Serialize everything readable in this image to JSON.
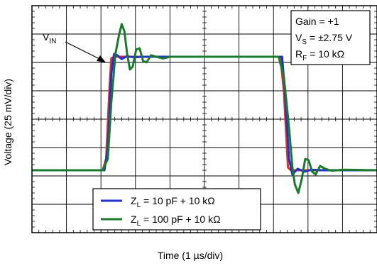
{
  "chart_data": {
    "type": "line",
    "xlabel": "Time (1 µs/div)",
    "ylabel": "Voltage (25 mV/div)",
    "x_divisions": 10,
    "y_divisions": 8,
    "xlim": [
      0,
      10
    ],
    "ylim": [
      0,
      8
    ],
    "grid": true,
    "annotation_box": {
      "gain": "Gain = +1",
      "vs_prefix": "V",
      "vs_sub": "S",
      "vs_value": " = ±2.75 V",
      "rf_prefix": "R",
      "rf_sub": "F",
      "rf_value": " = 10 kΩ"
    },
    "vin_label": {
      "prefix": "V",
      "sub": "IN"
    },
    "legend": {
      "placement": "bottom-center",
      "entries": [
        {
          "prefix": "Z",
          "sub": "L",
          "text": " = 10 pF + 10 kΩ",
          "color": "#1f2fd0"
        },
        {
          "prefix": "Z",
          "sub": "L",
          "text": " = 100 pF + 10 kΩ",
          "color": "#1a7a2c"
        }
      ]
    },
    "series": [
      {
        "id": "vin",
        "color": "#e0302a",
        "points": [
          [
            0,
            2.2
          ],
          [
            2.05,
            2.2
          ],
          [
            2.15,
            2.6
          ],
          [
            2.25,
            5.2
          ],
          [
            2.3,
            6.15
          ],
          [
            2.4,
            6.2
          ],
          [
            7.2,
            6.2
          ],
          [
            7.3,
            5.0
          ],
          [
            7.42,
            2.3
          ],
          [
            7.5,
            2.2
          ],
          [
            10,
            2.2
          ]
        ]
      },
      {
        "id": "blue",
        "color": "#1f2fd0",
        "points": [
          [
            0,
            2.2
          ],
          [
            2.1,
            2.2
          ],
          [
            2.2,
            3.0
          ],
          [
            2.3,
            5.6
          ],
          [
            2.38,
            6.3
          ],
          [
            2.48,
            6.25
          ],
          [
            2.6,
            6.12
          ],
          [
            2.75,
            6.22
          ],
          [
            2.95,
            6.18
          ],
          [
            3.2,
            6.2
          ],
          [
            7.25,
            6.2
          ],
          [
            7.33,
            5.0
          ],
          [
            7.45,
            2.6
          ],
          [
            7.55,
            2.05
          ],
          [
            7.7,
            2.25
          ],
          [
            7.9,
            2.15
          ],
          [
            8.1,
            2.22
          ],
          [
            8.4,
            2.2
          ],
          [
            10,
            2.2
          ]
        ]
      },
      {
        "id": "green",
        "color": "#1a7a2c",
        "points": [
          [
            0,
            2.2
          ],
          [
            2.05,
            2.2
          ],
          [
            2.2,
            2.6
          ],
          [
            2.3,
            4.6
          ],
          [
            2.42,
            6.3
          ],
          [
            2.52,
            6.95
          ],
          [
            2.6,
            7.35
          ],
          [
            2.68,
            7.1
          ],
          [
            2.76,
            6.3
          ],
          [
            2.84,
            5.75
          ],
          [
            2.92,
            5.85
          ],
          [
            3.02,
            6.45
          ],
          [
            3.12,
            6.5
          ],
          [
            3.22,
            6.05
          ],
          [
            3.32,
            6.0
          ],
          [
            3.45,
            6.25
          ],
          [
            3.6,
            6.2
          ],
          [
            3.8,
            6.14
          ],
          [
            4.0,
            6.2
          ],
          [
            7.15,
            6.2
          ],
          [
            7.3,
            5.5
          ],
          [
            7.45,
            3.7
          ],
          [
            7.55,
            2.3
          ],
          [
            7.62,
            1.7
          ],
          [
            7.72,
            1.4
          ],
          [
            7.82,
            1.9
          ],
          [
            7.92,
            2.6
          ],
          [
            8.02,
            2.55
          ],
          [
            8.12,
            2.15
          ],
          [
            8.22,
            2.05
          ],
          [
            8.35,
            2.35
          ],
          [
            8.5,
            2.25
          ],
          [
            8.7,
            2.18
          ],
          [
            9.0,
            2.22
          ],
          [
            10,
            2.2
          ]
        ]
      }
    ]
  }
}
